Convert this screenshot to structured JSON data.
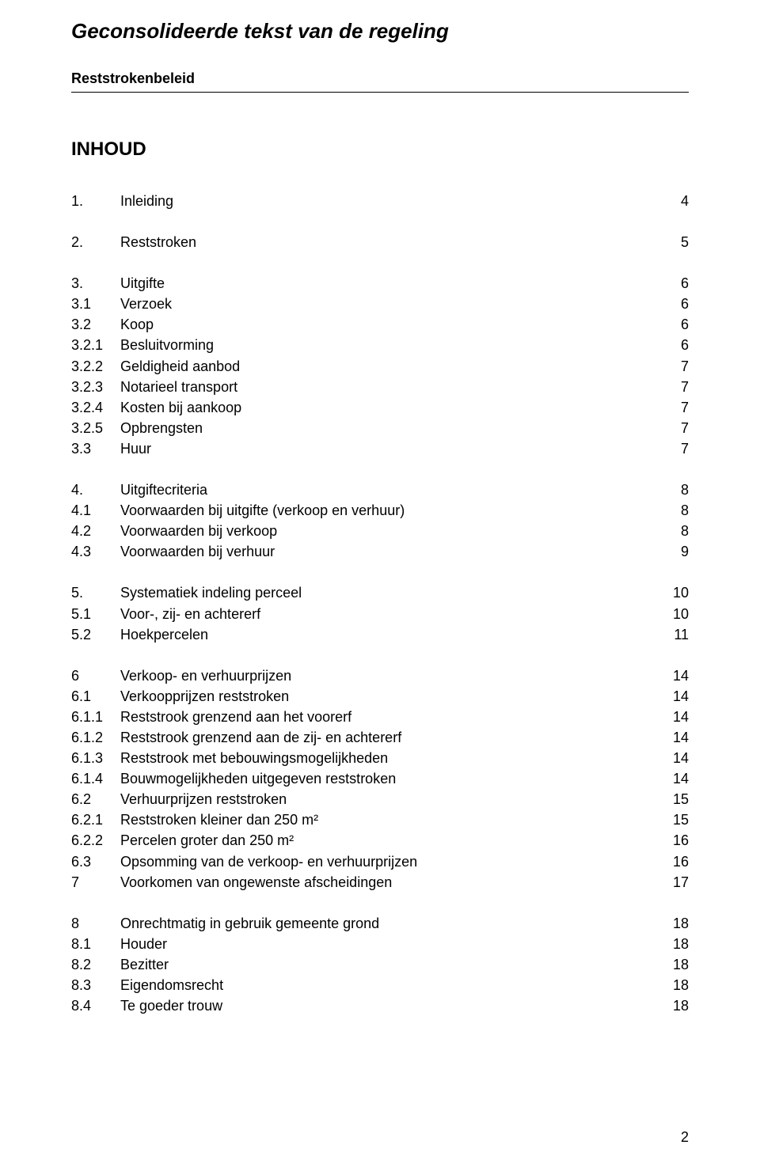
{
  "document": {
    "title": "Geconsolideerde tekst van de regeling",
    "subtitle": "Reststrokenbeleid",
    "toc_heading": "INHOUD",
    "page_number": "2"
  },
  "toc": {
    "groups": [
      {
        "rows": [
          {
            "num": "1.",
            "label": "Inleiding",
            "page": "4"
          }
        ]
      },
      {
        "rows": [
          {
            "num": "2.",
            "label": "Reststroken",
            "page": "5"
          }
        ]
      },
      {
        "rows": [
          {
            "num": "3.",
            "label": "Uitgifte",
            "page": "6"
          },
          {
            "num": "3.1",
            "label": "Verzoek",
            "page": "6"
          },
          {
            "num": "3.2",
            "label": "Koop",
            "page": "6"
          },
          {
            "num": "3.2.1",
            "label": "Besluitvorming",
            "page": "6"
          },
          {
            "num": "3.2.2",
            "label": "Geldigheid aanbod",
            "page": "7"
          },
          {
            "num": "3.2.3",
            "label": "Notarieel transport",
            "page": "7"
          },
          {
            "num": "3.2.4",
            "label": "Kosten bij aankoop",
            "page": "7"
          },
          {
            "num": "3.2.5",
            "label": "Opbrengsten",
            "page": "7"
          },
          {
            "num": "3.3",
            "label": "Huur",
            "page": "7"
          }
        ]
      },
      {
        "rows": [
          {
            "num": "4.",
            "label": "Uitgiftecriteria",
            "page": "8"
          },
          {
            "num": "4.1",
            "label": "Voorwaarden bij uitgifte (verkoop en verhuur)",
            "page": "8"
          },
          {
            "num": "4.2",
            "label": "Voorwaarden bij verkoop",
            "page": "8"
          },
          {
            "num": "4.3",
            "label": "Voorwaarden bij verhuur",
            "page": "9"
          }
        ]
      },
      {
        "rows": [
          {
            "num": "5.",
            "label": "Systematiek indeling perceel",
            "page": "10"
          },
          {
            "num": "5.1",
            "label": "Voor-, zij- en achtererf",
            "page": "10"
          },
          {
            "num": "5.2",
            "label": "Hoekpercelen",
            "page": "11"
          }
        ]
      },
      {
        "rows": [
          {
            "num": "6",
            "label": "Verkoop- en verhuurprijzen",
            "page": "14"
          },
          {
            "num": "6.1",
            "label": "Verkoopprijzen reststroken",
            "page": "14"
          },
          {
            "num": "6.1.1",
            "label": "Reststrook grenzend aan het voorerf",
            "page": "14"
          },
          {
            "num": "6.1.2",
            "label": "Reststrook grenzend aan de zij- en achtererf",
            "page": "14"
          },
          {
            "num": "6.1.3",
            "label": "Reststrook met bebouwingsmogelijkheden",
            "page": "14"
          },
          {
            "num": "6.1.4",
            "label": "Bouwmogelijkheden uitgegeven reststroken",
            "page": "14"
          },
          {
            "num": "6.2",
            "label": "Verhuurprijzen reststroken",
            "page": "15"
          },
          {
            "num": "6.2.1",
            "label": "Reststroken kleiner dan 250 m²",
            "page": "15"
          },
          {
            "num": "6.2.2",
            "label": "Percelen groter dan 250 m²",
            "page": "16"
          },
          {
            "num": "6.3",
            "label": "Opsomming van de verkoop- en verhuurprijzen",
            "page": "16"
          },
          {
            "num": "7",
            "label": "Voorkomen van ongewenste afscheidingen",
            "page": "17"
          }
        ]
      },
      {
        "rows": [
          {
            "num": "8",
            "label": "Onrechtmatig in gebruik gemeente grond",
            "page": "18"
          },
          {
            "num": "8.1",
            "label": "Houder",
            "page": "18"
          },
          {
            "num": "8.2",
            "label": "Bezitter",
            "page": "18"
          },
          {
            "num": "8.3",
            "label": "Eigendomsrecht",
            "page": "18"
          },
          {
            "num": "8.4",
            "label": "Te goeder trouw",
            "page": "18"
          }
        ]
      }
    ]
  }
}
